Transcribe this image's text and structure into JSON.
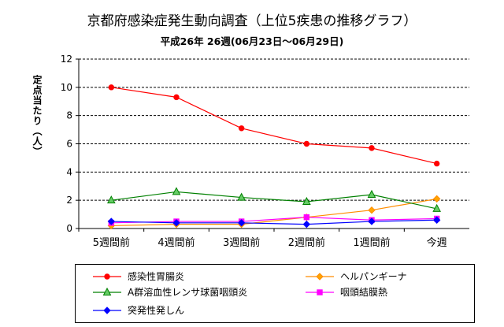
{
  "chart_data": {
    "type": "line",
    "title": "京都府感染症発生動向調査（上位5疾患の推移グラフ）",
    "subtitle": "平成26年 26週(06月23日～06月29日)",
    "ylabel": "定点当たり（人）",
    "xlabel": "",
    "categories": [
      "5週間前",
      "4週間前",
      "3週間前",
      "2週間前",
      "1週間前",
      "今週"
    ],
    "ylim": [
      0,
      12
    ],
    "yticks": [
      "0",
      "2",
      "4",
      "6",
      "8",
      "10",
      "12"
    ],
    "grid": "horizontal dashed",
    "legend_position": "bottom",
    "series": [
      {
        "name": "感染性胃腸炎",
        "values": [
          10.0,
          9.3,
          7.1,
          6.0,
          5.7,
          4.6
        ],
        "color": "#ff0000",
        "marker": "circle"
      },
      {
        "name": "ヘルパンギーナ",
        "values": [
          0.2,
          0.3,
          0.3,
          0.8,
          1.3,
          2.1
        ],
        "color": "#ff8c00",
        "marker": "diamond"
      },
      {
        "name": "A群溶血性レンサ球菌咽頭炎",
        "values": [
          2.0,
          2.6,
          2.2,
          1.9,
          2.4,
          1.4
        ],
        "color": "#008000",
        "marker": "triangle"
      },
      {
        "name": "咽頭結膜熱",
        "values": [
          0.4,
          0.5,
          0.5,
          0.8,
          0.6,
          0.7
        ],
        "color": "#ff00ff",
        "marker": "square"
      },
      {
        "name": "突発性発しん",
        "values": [
          0.5,
          0.4,
          0.4,
          0.3,
          0.5,
          0.6
        ],
        "color": "#0000ff",
        "marker": "diamond"
      }
    ]
  }
}
